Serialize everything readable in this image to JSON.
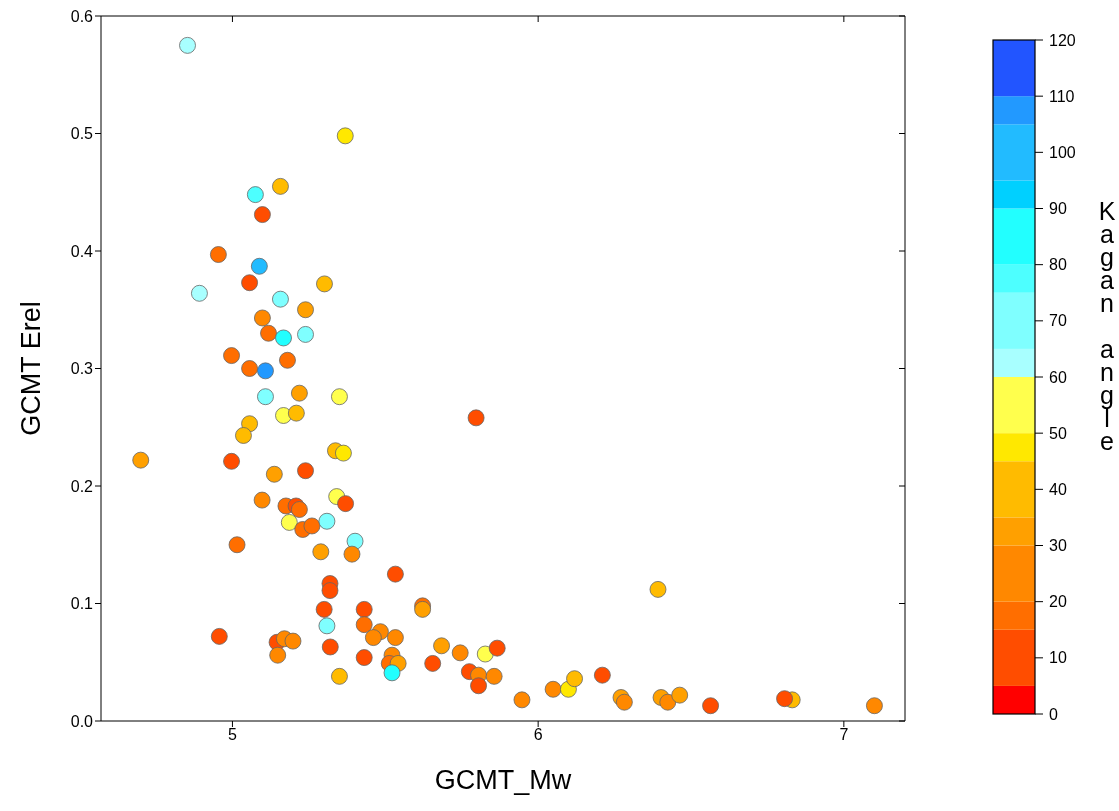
{
  "chart_data": {
    "type": "scatter",
    "xlabel": "GCMT_Mw",
    "ylabel": "GCMT Erel",
    "clabel": "Kagan angle",
    "xlim": [
      4.57,
      7.2
    ],
    "xticks": [
      5,
      6,
      7
    ],
    "ylim": [
      0,
      0.6
    ],
    "yticks": [
      {
        "value": 0,
        "label": "0.0"
      },
      0.1,
      0.2,
      0.3,
      0.4,
      0.5,
      0.6
    ],
    "clim": [
      0,
      120
    ],
    "cticks": [
      0,
      10,
      20,
      30,
      40,
      50,
      60,
      70,
      80,
      90,
      100,
      110,
      120
    ],
    "marker": "circle",
    "x": [
      4.853,
      5.369,
      5.157,
      5.075,
      5.098,
      4.954,
      5.088,
      5.056,
      4.892,
      5.301,
      5.157,
      5.239,
      5.098,
      5.118,
      5.167,
      5.239,
      4.997,
      5.18,
      5.056,
      5.108,
      5.108,
      5.219,
      5.35,
      5.167,
      5.209,
      5.797,
      5.056,
      5.036,
      4.7,
      4.997,
      5.337,
      5.363,
      5.239,
      5.137,
      5.097,
      5.341,
      5.37,
      5.175,
      5.208,
      5.219,
      5.186,
      5.23,
      5.26,
      5.309,
      5.015,
      5.401,
      5.289,
      5.391,
      5.533,
      5.319,
      5.319,
      5.622,
      5.622,
      5.3,
      5.431,
      5.309,
      5.431,
      5.484,
      5.461,
      5.533,
      4.957,
      5.146,
      5.17,
      5.198,
      5.148,
      5.32,
      5.35,
      5.431,
      5.522,
      5.513,
      5.542,
      5.522,
      5.684,
      5.655,
      5.745,
      5.827,
      5.866,
      5.775,
      5.805,
      5.856,
      5.805,
      5.947,
      6.049,
      6.099,
      6.119,
      6.21,
      6.271,
      6.282,
      6.392,
      6.402,
      6.424,
      6.463,
      6.564,
      6.831,
      6.806,
      7.1
    ],
    "values": [
      0.575,
      0.498,
      0.455,
      0.448,
      0.431,
      0.397,
      0.387,
      0.373,
      0.364,
      0.372,
      0.359,
      0.35,
      0.343,
      0.33,
      0.326,
      0.329,
      0.311,
      0.307,
      0.3,
      0.298,
      0.276,
      0.279,
      0.276,
      0.26,
      0.262,
      0.258,
      0.253,
      0.243,
      0.222,
      0.221,
      0.23,
      0.228,
      0.213,
      0.21,
      0.188,
      0.191,
      0.185,
      0.183,
      0.183,
      0.18,
      0.169,
      0.163,
      0.166,
      0.17,
      0.15,
      0.153,
      0.144,
      0.142,
      0.125,
      0.117,
      0.111,
      0.098,
      0.095,
      0.095,
      0.095,
      0.081,
      0.082,
      0.076,
      0.071,
      0.071,
      0.072,
      0.067,
      0.07,
      0.068,
      0.056,
      0.063,
      0.038,
      0.054,
      0.056,
      0.049,
      0.049,
      0.041,
      0.064,
      0.049,
      0.058,
      0.057,
      0.062,
      0.042,
      0.039,
      0.038,
      0.03,
      0.018,
      0.027,
      0.027,
      0.036,
      0.039,
      0.02,
      0.016,
      0.112,
      0.02,
      0.016,
      0.022,
      0.013,
      0.018,
      0.019,
      0.013
    ],
    "cvalues": [
      62,
      48,
      40,
      78,
      10,
      18,
      100,
      10,
      62,
      40,
      70,
      32,
      25,
      18,
      85,
      70,
      18,
      18,
      18,
      108,
      70,
      32,
      55,
      55,
      40,
      10,
      40,
      40,
      32,
      10,
      40,
      48,
      10,
      32,
      25,
      55,
      10,
      18,
      10,
      18,
      55,
      18,
      18,
      70,
      18,
      70,
      32,
      25,
      10,
      10,
      10,
      18,
      32,
      10,
      10,
      70,
      18,
      25,
      25,
      25,
      10,
      10,
      25,
      25,
      25,
      10,
      40,
      10,
      25,
      18,
      32,
      85,
      32,
      10,
      25,
      55,
      10,
      10,
      25,
      25,
      10,
      25,
      25,
      48,
      40,
      10,
      32,
      25,
      40,
      32,
      25,
      32,
      10,
      40,
      10,
      25
    ]
  }
}
